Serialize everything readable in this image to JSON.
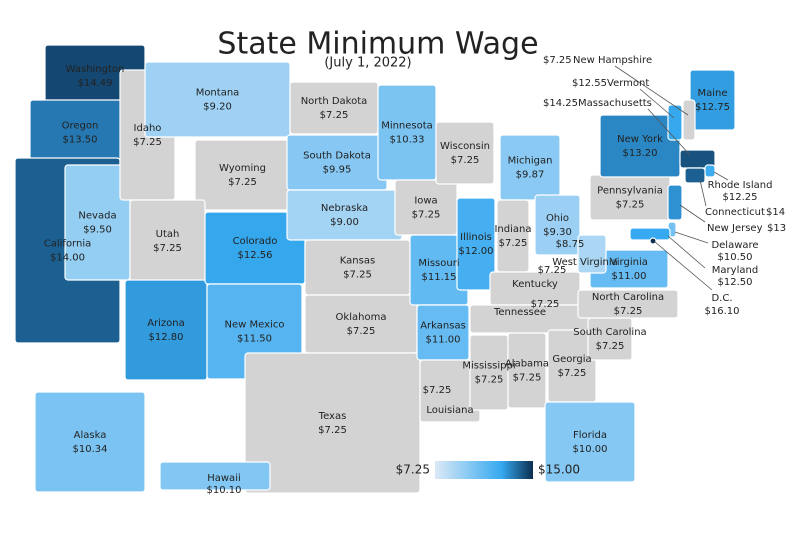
{
  "title": "State Minimum Wage",
  "subtitle": "(July 1, 2022)",
  "legend": {
    "min": {
      "value": 7.25,
      "label": "$7.25"
    },
    "max": {
      "value": 15.0,
      "label": "$15.00"
    },
    "colors": [
      "#dbe9f6",
      "#36a9f0",
      "#0b2e50"
    ],
    "base_color": "#d3d3d3"
  },
  "states": [
    {
      "name": "Washington",
      "value": 14.49,
      "label": "$14.49"
    },
    {
      "name": "Oregon",
      "value": 13.5,
      "label": "$13.50"
    },
    {
      "name": "California",
      "value": 14.0,
      "label": "$14.00"
    },
    {
      "name": "Nevada",
      "value": 9.5,
      "label": "$9.50"
    },
    {
      "name": "Idaho",
      "value": 7.25,
      "label": "$7.25"
    },
    {
      "name": "Montana",
      "value": 9.2,
      "label": "$9.20"
    },
    {
      "name": "Wyoming",
      "value": 7.25,
      "label": "$7.25"
    },
    {
      "name": "Utah",
      "value": 7.25,
      "label": "$7.25"
    },
    {
      "name": "Arizona",
      "value": 12.8,
      "label": "$12.80"
    },
    {
      "name": "Colorado",
      "value": 12.56,
      "label": "$12.56"
    },
    {
      "name": "New Mexico",
      "value": 11.5,
      "label": "$11.50"
    },
    {
      "name": "North Dakota",
      "value": 7.25,
      "label": "$7.25"
    },
    {
      "name": "South Dakota",
      "value": 9.95,
      "label": "$9.95"
    },
    {
      "name": "Nebraska",
      "value": 9.0,
      "label": "$9.00"
    },
    {
      "name": "Kansas",
      "value": 7.25,
      "label": "$7.25"
    },
    {
      "name": "Oklahoma",
      "value": 7.25,
      "label": "$7.25"
    },
    {
      "name": "Texas",
      "value": 7.25,
      "label": "$7.25"
    },
    {
      "name": "Minnesota",
      "value": 10.33,
      "label": "$10.33"
    },
    {
      "name": "Iowa",
      "value": 7.25,
      "label": "$7.25"
    },
    {
      "name": "Missouri",
      "value": 11.15,
      "label": "$11.15"
    },
    {
      "name": "Arkansas",
      "value": 11.0,
      "label": "$11.00"
    },
    {
      "name": "Louisiana",
      "value": 7.25,
      "label": "$7.25"
    },
    {
      "name": "Wisconsin",
      "value": 7.25,
      "label": "$7.25"
    },
    {
      "name": "Illinois",
      "value": 12.0,
      "label": "$12.00"
    },
    {
      "name": "Michigan",
      "value": 9.87,
      "label": "$9.87"
    },
    {
      "name": "Indiana",
      "value": 7.25,
      "label": "$7.25"
    },
    {
      "name": "Ohio",
      "value": 9.3,
      "label": "$9.30"
    },
    {
      "name": "Kentucky",
      "value": 7.25,
      "label": "$7.25"
    },
    {
      "name": "Tennessee",
      "value": 7.25,
      "label": "$7.25"
    },
    {
      "name": "Mississippi",
      "value": 7.25,
      "label": "$7.25"
    },
    {
      "name": "Alabama",
      "value": 7.25,
      "label": "$7.25"
    },
    {
      "name": "Georgia",
      "value": 7.25,
      "label": "$7.25"
    },
    {
      "name": "Florida",
      "value": 10.0,
      "label": "$10.00"
    },
    {
      "name": "South Carolina",
      "value": 7.25,
      "label": "$7.25"
    },
    {
      "name": "North Carolina",
      "value": 7.25,
      "label": "$7.25"
    },
    {
      "name": "Virginia",
      "value": 11.0,
      "label": "$11.00"
    },
    {
      "name": "West Virginia",
      "value": 8.75,
      "label": "$8.75"
    },
    {
      "name": "Pennsylvania",
      "value": 7.25,
      "label": "$7.25"
    },
    {
      "name": "New York",
      "value": 13.2,
      "label": "$13.20"
    },
    {
      "name": "Maine",
      "value": 12.75,
      "label": "$12.75"
    },
    {
      "name": "New Hampshire",
      "value": 7.25,
      "label": "$7.25"
    },
    {
      "name": "Vermont",
      "value": 12.55,
      "label": "$12.55"
    },
    {
      "name": "Massachusetts",
      "value": 14.25,
      "label": "$14.25"
    },
    {
      "name": "Rhode Island",
      "value": 12.25,
      "label": "$12.25"
    },
    {
      "name": "Connecticut",
      "value": 14,
      "label": "$14"
    },
    {
      "name": "New Jersey",
      "value": 13,
      "label": "$13"
    },
    {
      "name": "Delaware",
      "value": 10.5,
      "label": "$10.50"
    },
    {
      "name": "Maryland",
      "value": 12.5,
      "label": "$12.50"
    },
    {
      "name": "D.C.",
      "value": 16.1,
      "label": "$16.10"
    },
    {
      "name": "Alaska",
      "value": 10.34,
      "label": "$10.34"
    },
    {
      "name": "Hawaii",
      "value": 10.1,
      "label": "$10.10"
    }
  ]
}
